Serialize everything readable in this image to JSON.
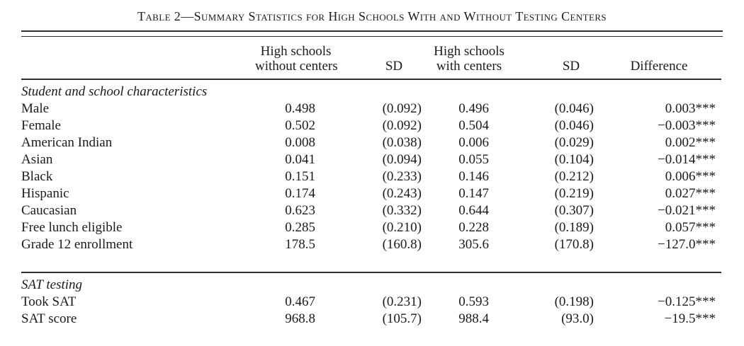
{
  "title": "Table 2—Summary Statistics for High Schools With and Without Testing Centers",
  "colors": {
    "text": "#1b1b1b",
    "rule": "#2e2e2e",
    "background": "#ffffff"
  },
  "table": {
    "headers": {
      "without": {
        "line1": "High schools",
        "line2": "without centers"
      },
      "sd1": "SD",
      "with": {
        "line1": "High schools",
        "line2": "with centers"
      },
      "sd2": "SD",
      "difference": "Difference"
    },
    "sections": [
      {
        "label": "Student and school characteristics",
        "rows": [
          {
            "label": "Male",
            "without": "0.498",
            "sd_without": "(0.092)",
            "with": "0.496",
            "sd_with": "(0.046)",
            "difference": "0.003***"
          },
          {
            "label": "Female",
            "without": "0.502",
            "sd_without": "(0.092)",
            "with": "0.504",
            "sd_with": "(0.046)",
            "difference": "−0.003***"
          },
          {
            "label": "American Indian",
            "without": "0.008",
            "sd_without": "(0.038)",
            "with": "0.006",
            "sd_with": "(0.029)",
            "difference": "0.002***"
          },
          {
            "label": "Asian",
            "without": "0.041",
            "sd_without": "(0.094)",
            "with": "0.055",
            "sd_with": "(0.104)",
            "difference": "−0.014***"
          },
          {
            "label": "Black",
            "without": "0.151",
            "sd_without": "(0.233)",
            "with": "0.146",
            "sd_with": "(0.212)",
            "difference": "0.006***"
          },
          {
            "label": "Hispanic",
            "without": "0.174",
            "sd_without": "(0.243)",
            "with": "0.147",
            "sd_with": "(0.219)",
            "difference": "0.027***"
          },
          {
            "label": "Caucasian",
            "without": "0.623",
            "sd_without": "(0.332)",
            "with": "0.644",
            "sd_with": "(0.307)",
            "difference": "−0.021***"
          },
          {
            "label": "Free lunch eligible",
            "without": "0.285",
            "sd_without": "(0.210)",
            "with": "0.228",
            "sd_with": "(0.189)",
            "difference": "0.057***"
          },
          {
            "label": "Grade 12 enrollment",
            "without": "178.5",
            "sd_without": "(160.8)",
            "with": "305.6",
            "sd_with": "(170.8)",
            "difference": "−127.0***"
          }
        ]
      },
      {
        "label": "SAT testing",
        "rows": [
          {
            "label": "Took SAT",
            "without": "0.467",
            "sd_without": "(0.231)",
            "with": "0.593",
            "sd_with": "(0.198)",
            "difference": "−0.125***"
          },
          {
            "label": "SAT score",
            "without": "968.8",
            "sd_without": "(105.7)",
            "with": "988.4",
            "sd_with": "(93.0)",
            "difference": "−19.5***"
          }
        ]
      }
    ]
  }
}
